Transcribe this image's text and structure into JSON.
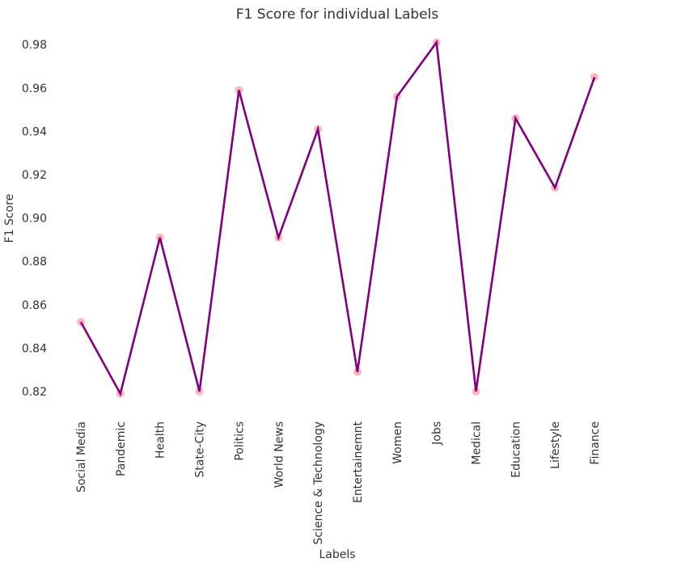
{
  "chart_data": {
    "type": "line",
    "title": "F1 Score for individual Labels",
    "xlabel": "Labels",
    "ylabel": "F1 Score",
    "categories": [
      "Social Media",
      "Pandemic",
      "Health",
      "State-City",
      "Politics",
      "World News",
      "Science & Technology",
      "Entertainemnt",
      "Women",
      "Jobs",
      "Medical",
      "Education",
      "Lifestyle",
      "Finance"
    ],
    "values": [
      0.852,
      0.819,
      0.891,
      0.82,
      0.959,
      0.891,
      0.941,
      0.829,
      0.956,
      0.981,
      0.82,
      0.946,
      0.914,
      0.965
    ],
    "yticks": [
      "0.82",
      "0.84",
      "0.86",
      "0.88",
      "0.90",
      "0.92",
      "0.94",
      "0.96",
      "0.98"
    ],
    "ylim": [
      0.811,
      0.984
    ],
    "grid": false,
    "colors": {
      "line": "#800080",
      "marker": "#ffb6c1"
    }
  }
}
